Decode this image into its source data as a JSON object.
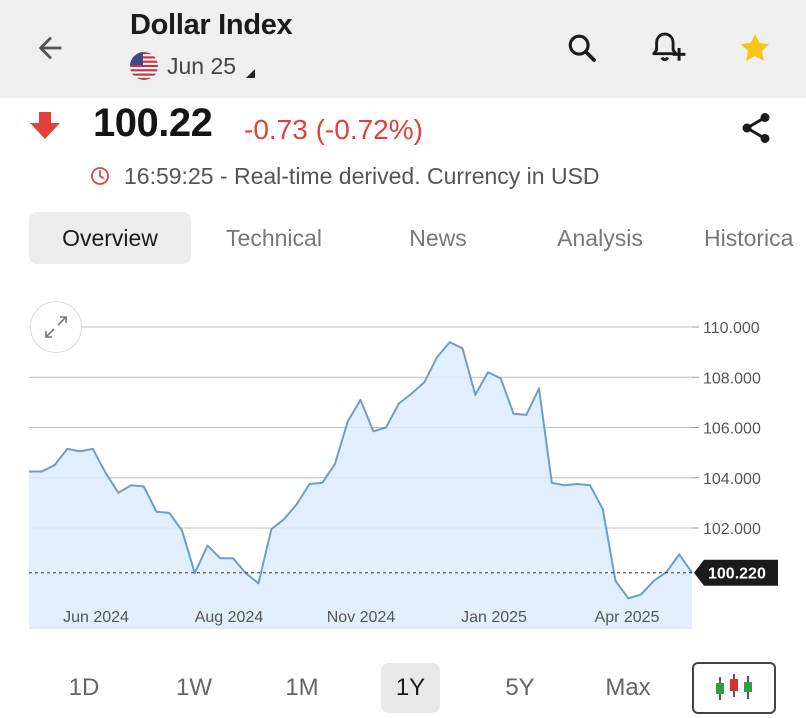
{
  "header": {
    "title": "Dollar Index",
    "subtitle": "Jun 25",
    "icons": [
      "back-arrow-icon",
      "search-icon",
      "add-alert-icon",
      "star-icon"
    ]
  },
  "quote": {
    "price": "100.22",
    "change": "-0.73 (-0.72%)",
    "direction": "down",
    "time_text": "16:59:25 - Real-time derived. Currency in USD"
  },
  "tabs": [
    {
      "label": "Overview",
      "active": true
    },
    {
      "label": "Technical",
      "active": false
    },
    {
      "label": "News",
      "active": false
    },
    {
      "label": "Analysis",
      "active": false
    },
    {
      "label": "Historica",
      "active": false
    }
  ],
  "ranges": [
    {
      "label": "1D",
      "active": false
    },
    {
      "label": "1W",
      "active": false
    },
    {
      "label": "1M",
      "active": false
    },
    {
      "label": "1Y",
      "active": true
    },
    {
      "label": "5Y",
      "active": false
    },
    {
      "label": "Max",
      "active": false
    }
  ],
  "colors": {
    "accent_down": "#e0423a",
    "line": "#6f9dc8",
    "fill": "#dcecfb",
    "star": "#f5c518",
    "price_tag_bg": "#1b1b1b"
  },
  "chart_data": {
    "type": "area",
    "ylim": [
      99.2,
      110.6
    ],
    "y_ticks": [
      "110.000",
      "108.000",
      "106.000",
      "104.000",
      "102.000"
    ],
    "x_tick_labels": [
      "Jun 2024",
      "Aug 2024",
      "Nov 2024",
      "Jan 2025",
      "Apr 2025"
    ],
    "last_value_label": "100.220",
    "last_value": 100.22,
    "series": [
      {
        "values": [
          104.25,
          104.25,
          104.5,
          105.15,
          105.05,
          105.15,
          104.2,
          103.4,
          103.7,
          103.65,
          102.65,
          102.6,
          101.9,
          100.2,
          101.3,
          100.8,
          100.8,
          100.2,
          99.8,
          101.95,
          102.35,
          102.95,
          103.75,
          103.8,
          104.55,
          106.25,
          107.1,
          105.85,
          106.0,
          106.95,
          107.35,
          107.8,
          108.8,
          109.4,
          109.15,
          107.3,
          108.2,
          107.95,
          106.55,
          106.5,
          107.55,
          103.8,
          103.7,
          103.75,
          103.7,
          102.75,
          99.9,
          99.2,
          99.35,
          99.9,
          100.25,
          100.95,
          100.22
        ]
      }
    ]
  }
}
